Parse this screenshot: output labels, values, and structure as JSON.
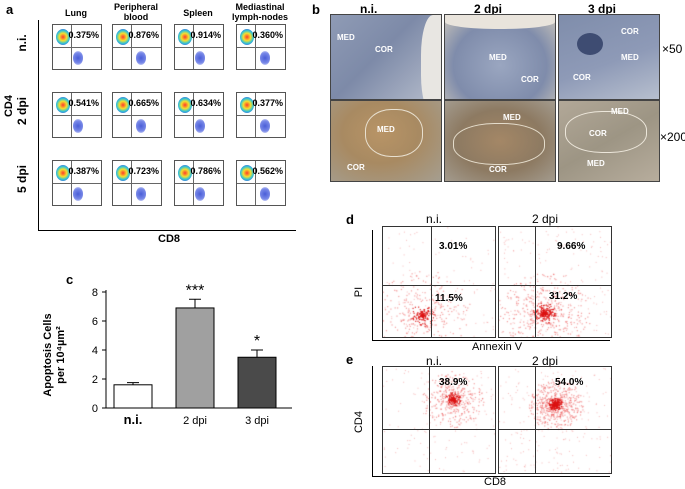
{
  "panel_a": {
    "label": "a",
    "columns": [
      "Lung",
      "Peripheral blood",
      "Spleen",
      "Mediastinal lymph-nodes"
    ],
    "rows": [
      {
        "label": "n.i.",
        "values": [
          "0.375%",
          "0.876%",
          "0.914%",
          "0.360%"
        ]
      },
      {
        "label": "2 dpi",
        "values": [
          "0.541%",
          "0.665%",
          "0.634%",
          "0.377%"
        ]
      },
      {
        "label": "5 dpi",
        "values": [
          "0.387%",
          "0.723%",
          "0.786%",
          "0.562%"
        ]
      }
    ],
    "ylabel": "CD4",
    "xlabel": "CD8"
  },
  "panel_b": {
    "label": "b",
    "columns": [
      "n.i.",
      "2 dpi",
      "3 dpi"
    ],
    "mag_top": "×50",
    "mag_bottom": "×200",
    "top_labels": [
      [
        "MED",
        "COR"
      ],
      [
        "MED",
        "COR"
      ],
      [
        "COR",
        "MED",
        "COR"
      ]
    ],
    "bottom_labels": [
      [
        "MED",
        "COR"
      ],
      [
        "MED",
        "COR"
      ],
      [
        "MED",
        "COR",
        "MED"
      ]
    ]
  },
  "panel_c": {
    "label": "c",
    "ylabel_line1": "Apoptosis Cells",
    "ylabel_line2": "per 10⁴µm²",
    "sig": [
      "",
      "***",
      "*"
    ]
  },
  "chart_data": {
    "type": "bar",
    "categories": [
      "n.i.",
      "2 dpi",
      "3 dpi"
    ],
    "values": [
      1.6,
      6.9,
      3.5
    ],
    "errors": [
      0.15,
      0.6,
      0.5
    ],
    "ylabel": "Apoptosis Cells per 10⁴µm²",
    "ylim": [
      0,
      8
    ],
    "yticks": [
      "0",
      "2",
      "4",
      "6",
      "8"
    ],
    "colors": [
      "#ffffff",
      "#a0a0a0",
      "#4a4a4a"
    ]
  },
  "panel_d": {
    "label": "d",
    "columns": [
      "n.i.",
      "2 dpi"
    ],
    "ylabel": "PI",
    "xlabel": "Annexin V",
    "upper": [
      "3.01%",
      "9.66%"
    ],
    "lower": [
      "11.5%",
      "31.2%"
    ]
  },
  "panel_e": {
    "label": "e",
    "columns": [
      "n.i.",
      "2 dpi"
    ],
    "ylabel": "CD4",
    "xlabel": "CD8",
    "values": [
      "38.9%",
      "54.0%"
    ]
  }
}
